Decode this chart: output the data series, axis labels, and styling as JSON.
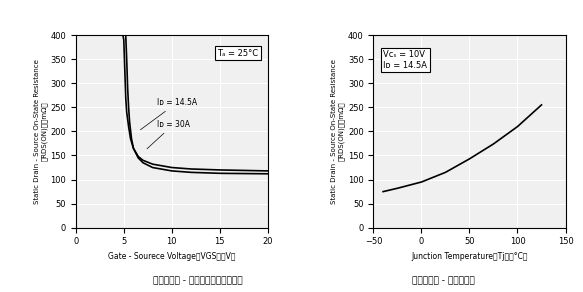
{
  "chart1": {
    "title_annotation": "Tₐ = 25°C",
    "xlabel": "Gate - Sourece Voltage：VGS　【V】",
    "ylabel": "Static Drain - Source On-State Resistance\n：RDS(ON)　【mΩ】",
    "caption": "【导通电阻 - 栊极源极间电压特性】",
    "xlim": [
      0,
      20
    ],
    "ylim": [
      0,
      400
    ],
    "xticks": [
      0,
      5,
      10,
      15,
      20
    ],
    "yticks": [
      0,
      50,
      100,
      150,
      200,
      250,
      300,
      350,
      400
    ],
    "curve1_label": "Iᴅ = 14.5A",
    "curve2_label": "Iᴅ = 30A",
    "bg_color": "#f0f0f0"
  },
  "chart2": {
    "annotation_line1": "Vᴄₛ = 10V",
    "annotation_line2": "Iᴅ = 14.5A",
    "xlabel": "Junction Temperature：Tj　【°C】",
    "ylabel": "Static Drain - Source On-State Resistance\n：RDS(ON)　【mΩ】",
    "caption": "【导通电阻 - 结温特性】",
    "xlim": [
      -50,
      150
    ],
    "ylim": [
      0,
      400
    ],
    "xticks": [
      -50,
      0,
      50,
      100,
      150
    ],
    "yticks": [
      0,
      50,
      100,
      150,
      200,
      250,
      300,
      350,
      400
    ],
    "bg_color": "#f0f0f0"
  }
}
